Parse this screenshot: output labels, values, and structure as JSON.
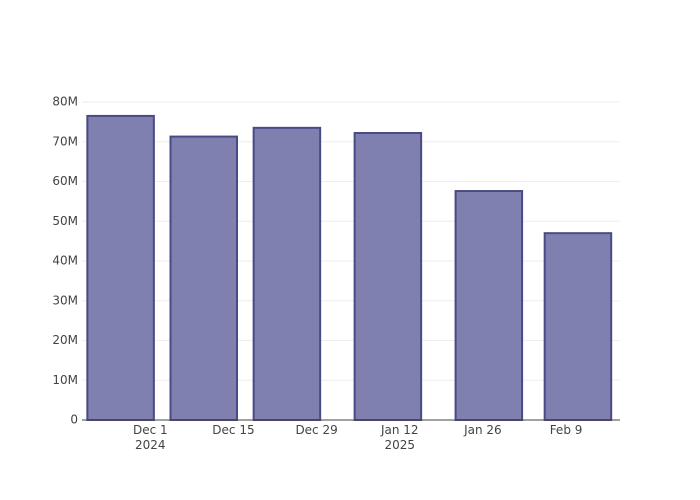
{
  "chart_data": {
    "type": "bar",
    "x": [
      "2024-11-26",
      "2024-12-10",
      "2024-12-24",
      "2025-01-10",
      "2025-01-27",
      "2025-02-11"
    ],
    "values": [
      76500000,
      71300000,
      73500000,
      72200000,
      57600000,
      47000000
    ],
    "color": "#7f7fb0",
    "edge_color": "#4a4a85",
    "xlim": [
      "2024-11-19T12:00:00",
      "2025-02-18T02:00:00"
    ],
    "xticks": [
      {
        "value": "2024-12-01",
        "label": [
          "Dec 1",
          "2024"
        ]
      },
      {
        "value": "2024-12-15",
        "label": [
          "Dec 15"
        ]
      },
      {
        "value": "2024-12-29",
        "label": [
          "Dec 29"
        ]
      },
      {
        "value": "2025-01-12",
        "label": [
          "Jan 12",
          "2025"
        ]
      },
      {
        "value": "2025-01-26",
        "label": [
          "Jan 26"
        ]
      },
      {
        "value": "2025-02-09",
        "label": [
          "Feb 9"
        ]
      }
    ],
    "ylim": [
      0,
      80000000
    ],
    "yticks": [
      0,
      {
        "value": 10000000,
        "label": "10M"
      },
      {
        "value": 20000000,
        "label": "20M"
      },
      {
        "value": 30000000,
        "label": "30M"
      },
      {
        "value": 40000000,
        "label": "40M"
      },
      {
        "value": 50000000,
        "label": "50M"
      },
      {
        "value": 60000000,
        "label": "60M"
      },
      {
        "value": 70000000,
        "label": "70M"
      },
      {
        "value": 80000000,
        "label": "80M"
      }
    ],
    "grid": true
  }
}
